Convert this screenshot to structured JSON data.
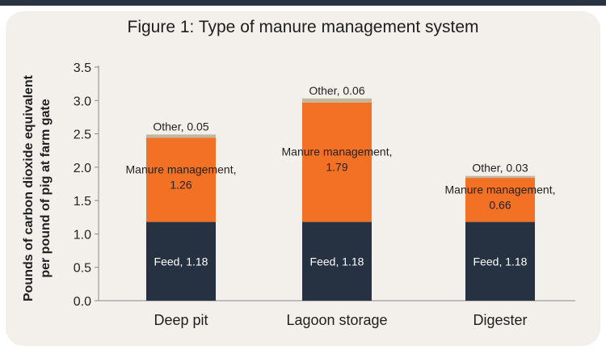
{
  "chart_data": {
    "type": "bar",
    "stacked": true,
    "title": "Figure 1: Type of manure management system",
    "ylabel_lines": [
      "Pounds of carbon dioxide equivalent",
      "per pound of pig at farm gate"
    ],
    "xlabel": "",
    "ylim": [
      0,
      3.5
    ],
    "yticks": [
      "0.0",
      "0.5",
      "1.0",
      "1.5",
      "2.0",
      "2.5",
      "3.0",
      "3.5"
    ],
    "grid": false,
    "categories": [
      "Deep pit",
      "Lagoon storage",
      "Digester"
    ],
    "series": [
      {
        "key": "feed",
        "label_prefix": "Feed",
        "values": [
          1.18,
          1.18,
          1.18
        ],
        "color": "#263141",
        "label_color": "#ffffff"
      },
      {
        "key": "manure",
        "label_prefix": "Manure management",
        "values": [
          1.26,
          1.79,
          0.66
        ],
        "color": "#f37124",
        "label_color": "#222222"
      },
      {
        "key": "other",
        "label_prefix": "Other",
        "values": [
          0.05,
          0.06,
          0.03
        ],
        "color": "#c3b79e",
        "label_color": "#222222"
      }
    ],
    "data_labels": [
      [
        "Feed, 1.18",
        "Feed, 1.18",
        "Feed, 1.18"
      ],
      [
        [
          "Manure management,",
          "1.26"
        ],
        [
          "Manure management,",
          "1.79"
        ],
        [
          "Manure management,",
          "0.66"
        ]
      ],
      [
        "Other, 0.05",
        "Other, 0.06",
        "Other, 0.03"
      ]
    ]
  },
  "colors": {
    "panel": "#f3f0ec",
    "topbar": "#283240",
    "axis": "#8a8a8a"
  }
}
